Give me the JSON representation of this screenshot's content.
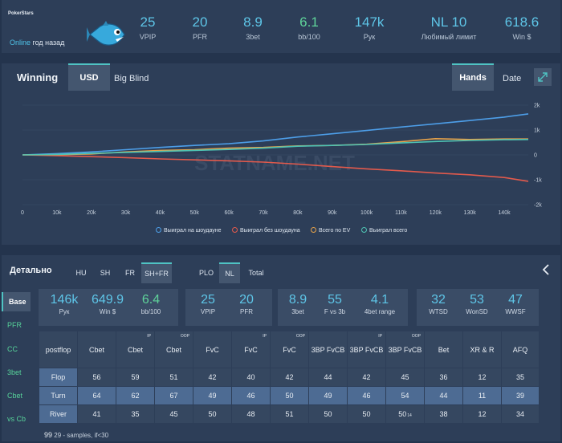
{
  "header": {
    "brand": "PokerStars",
    "status": "Online",
    "status_suffix": "год назад",
    "avatar": "fish-icon",
    "stats": [
      {
        "value": "25",
        "label": "VPIP"
      },
      {
        "value": "20",
        "label": "PFR"
      },
      {
        "value": "8.9",
        "label": "3bet"
      },
      {
        "value": "6.1",
        "label": "bb/100"
      },
      {
        "value": "147k",
        "label": "Рук"
      },
      {
        "value": "NL 10",
        "label": "Любимый лимит"
      },
      {
        "value": "618.6",
        "label": "Win $"
      }
    ]
  },
  "winning": {
    "title": "Winning",
    "currency_tabs": [
      "USD",
      "Big Blind"
    ],
    "axis_tabs": [
      "Hands",
      "Date"
    ],
    "expand_icon": "expand-icon",
    "watermark": "STATNAME.NET",
    "legend": [
      {
        "label": "Выиграл на шоудауне",
        "color": "#4d9ee8"
      },
      {
        "label": "Выиграл без шоудауна",
        "color": "#e35a4c"
      },
      {
        "label": "Всего по EV",
        "color": "#e6a24a"
      },
      {
        "label": "Выиграл всего",
        "color": "#4fc3b3"
      }
    ],
    "chart_data": {
      "type": "line",
      "x": [
        0,
        10000,
        20000,
        30000,
        40000,
        50000,
        60000,
        70000,
        80000,
        90000,
        100000,
        110000,
        120000,
        130000,
        140000,
        147000
      ],
      "xticks": [
        "0",
        "10k",
        "20k",
        "30k",
        "40k",
        "50k",
        "60k",
        "70k",
        "80k",
        "90k",
        "100k",
        "110k",
        "120k",
        "130k",
        "140k"
      ],
      "yticks": [
        "2k",
        "1k",
        "0",
        "-1k",
        "-2k"
      ],
      "ylim": [
        -2000,
        2000
      ],
      "xlim": [
        0,
        147000
      ],
      "series": [
        {
          "name": "Выиграл на шоудауне",
          "color": "#4d9ee8",
          "values": [
            0,
            50,
            120,
            210,
            300,
            380,
            450,
            560,
            720,
            850,
            980,
            1120,
            1250,
            1380,
            1520,
            1650
          ]
        },
        {
          "name": "Выиграл без шоудауна",
          "color": "#e35a4c",
          "values": [
            0,
            -30,
            -70,
            -110,
            -160,
            -200,
            -240,
            -290,
            -370,
            -470,
            -560,
            -640,
            -730,
            -800,
            -910,
            -1060
          ]
        },
        {
          "name": "Всего по EV",
          "color": "#e6a24a",
          "values": [
            0,
            10,
            40,
            120,
            180,
            210,
            270,
            300,
            360,
            380,
            430,
            530,
            650,
            620,
            640,
            640
          ]
        },
        {
          "name": "Выиграл всего",
          "color": "#4fc3b3",
          "values": [
            0,
            20,
            60,
            100,
            140,
            180,
            220,
            270,
            350,
            380,
            420,
            480,
            540,
            580,
            610,
            620
          ]
        }
      ]
    }
  },
  "detail": {
    "title": "Детально",
    "filters1": [
      "HU",
      "SH",
      "FR",
      "SH+FR"
    ],
    "filters2": [
      "PLO",
      "NL",
      "Total"
    ],
    "side": [
      "Base",
      "PFR",
      "CC",
      "3bet",
      "Cbet",
      "vs Cb"
    ],
    "box1": [
      {
        "value": "146k",
        "label": "Рук"
      },
      {
        "value": "649.9",
        "label": "Win $"
      },
      {
        "value": "6.4",
        "label": "bb/100"
      }
    ],
    "box2": [
      {
        "value": "25",
        "label": "VPIP"
      },
      {
        "value": "20",
        "label": "PFR"
      }
    ],
    "box3": [
      {
        "value": "8.9",
        "label": "3bet"
      },
      {
        "value": "55",
        "label": "F vs 3b"
      },
      {
        "value": "4.1",
        "label": "4bet range"
      }
    ],
    "box4": [
      {
        "value": "32",
        "label": "WTSD"
      },
      {
        "value": "53",
        "label": "WonSD"
      },
      {
        "value": "47",
        "label": "WWSF"
      }
    ],
    "table": {
      "headers": [
        {
          "label": "postflop",
          "sup": ""
        },
        {
          "label": "Cbet",
          "sup": ""
        },
        {
          "label": "Cbet",
          "sup": "IP"
        },
        {
          "label": "Cbet",
          "sup": "OOP"
        },
        {
          "label": "FvC",
          "sup": ""
        },
        {
          "label": "FvC",
          "sup": "IP"
        },
        {
          "label": "FvC",
          "sup": "OOP"
        },
        {
          "label": "3BP FvCB",
          "sup": ""
        },
        {
          "label": "3BP FvCB",
          "sup": "IP"
        },
        {
          "label": "3BP FvCB",
          "sup": "OOP"
        },
        {
          "label": "Bet",
          "sup": ""
        },
        {
          "label": "XR & R",
          "sup": ""
        },
        {
          "label": "AFQ",
          "sup": ""
        }
      ],
      "rows": [
        [
          "Flop",
          "56",
          "59",
          "51",
          "42",
          "40",
          "42",
          "44",
          "42",
          "45",
          "36",
          "12",
          "35"
        ],
        [
          "Turn",
          "64",
          "62",
          "67",
          "49",
          "46",
          "50",
          "49",
          "46",
          "54",
          "44",
          "11",
          "39"
        ],
        [
          "River",
          "41",
          "35",
          "45",
          "50",
          "48",
          "51",
          "50",
          "50",
          "50",
          "38",
          "12",
          "34"
        ]
      ],
      "river_note": "14"
    },
    "note_value": "99",
    "note_text": "29 - samples, if<30"
  }
}
